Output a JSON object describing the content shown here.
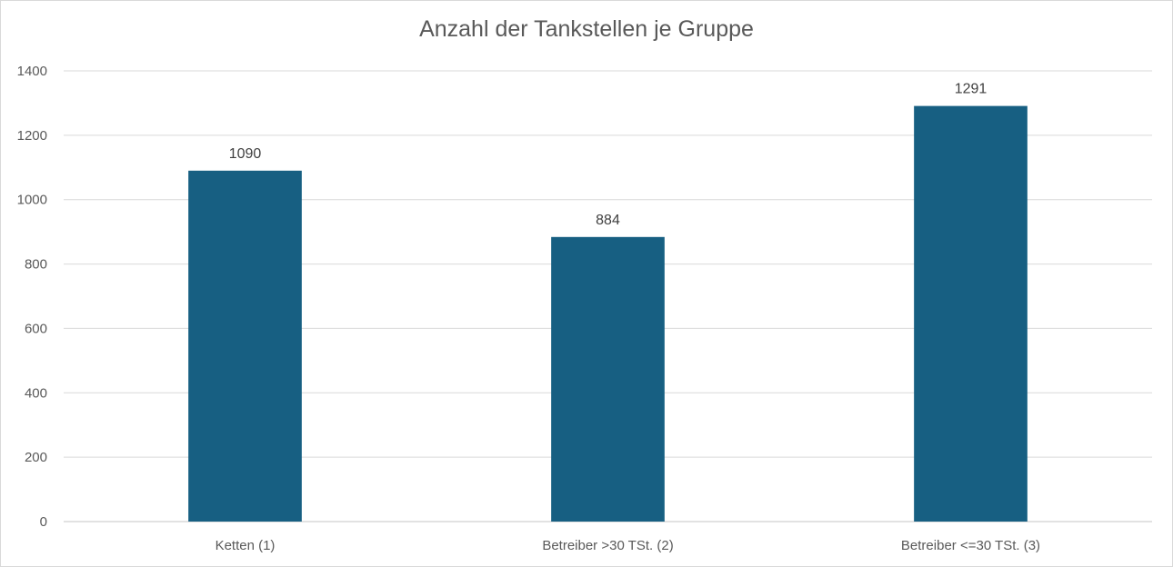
{
  "chart_data": {
    "type": "bar",
    "title": "Anzahl der Tankstellen je Gruppe",
    "categories": [
      "Ketten (1)",
      "Betreiber >30 TSt. (2)",
      "Betreiber <=30 TSt. (3)"
    ],
    "values": [
      1090,
      884,
      1291
    ],
    "data_labels": [
      "1090",
      "884",
      "1291"
    ],
    "y_ticks": [
      "0",
      "200",
      "400",
      "600",
      "800",
      "1000",
      "1200",
      "1400"
    ],
    "ylim": [
      0,
      1400
    ],
    "xlabel": "",
    "ylabel": "",
    "grid": true,
    "legend": "none",
    "colors": {
      "bar": "#175f82",
      "grid": "#d9d9d9",
      "text": "#595959",
      "label": "#404040"
    }
  }
}
